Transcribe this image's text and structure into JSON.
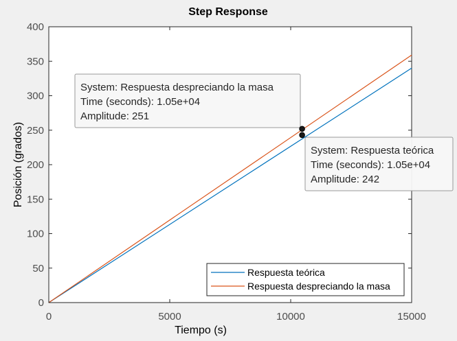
{
  "chart_data": {
    "type": "line",
    "title": "Step Response",
    "xlabel": "Tiempo (s)",
    "ylabel": "Posición (grados)",
    "xlim": [
      0,
      15000
    ],
    "ylim": [
      0,
      400
    ],
    "xticks": [
      0,
      5000,
      10000,
      15000
    ],
    "yticks": [
      0,
      50,
      100,
      150,
      200,
      250,
      300,
      350,
      400
    ],
    "xtick_labels": [
      "0",
      "5000",
      "10000",
      "15000"
    ],
    "ytick_labels": [
      "0",
      "50",
      "100",
      "150",
      "200",
      "250",
      "300",
      "350",
      "400"
    ],
    "grid": false,
    "legend_position": "bottom-right",
    "series": [
      {
        "name": "Respuesta teórica",
        "color": "#0072BD",
        "x": [
          0,
          15000
        ],
        "y": [
          0,
          340
        ]
      },
      {
        "name": "Respuesta despreciando la masa",
        "color": "#D95319",
        "x": [
          0,
          15000
        ],
        "y": [
          0,
          359
        ]
      }
    ],
    "datatips": [
      {
        "series": "Respuesta despreciando la masa",
        "x": 10500,
        "y": 251,
        "lines": [
          "System: Respuesta despreciando la masa",
          "Time (seconds): 1.05e+04",
          "Amplitude: 251"
        ]
      },
      {
        "series": "Respuesta teórica",
        "x": 10500,
        "y": 242,
        "lines": [
          "System: Respuesta teórica",
          "Time (seconds): 1.05e+04",
          "Amplitude: 242"
        ]
      }
    ]
  }
}
